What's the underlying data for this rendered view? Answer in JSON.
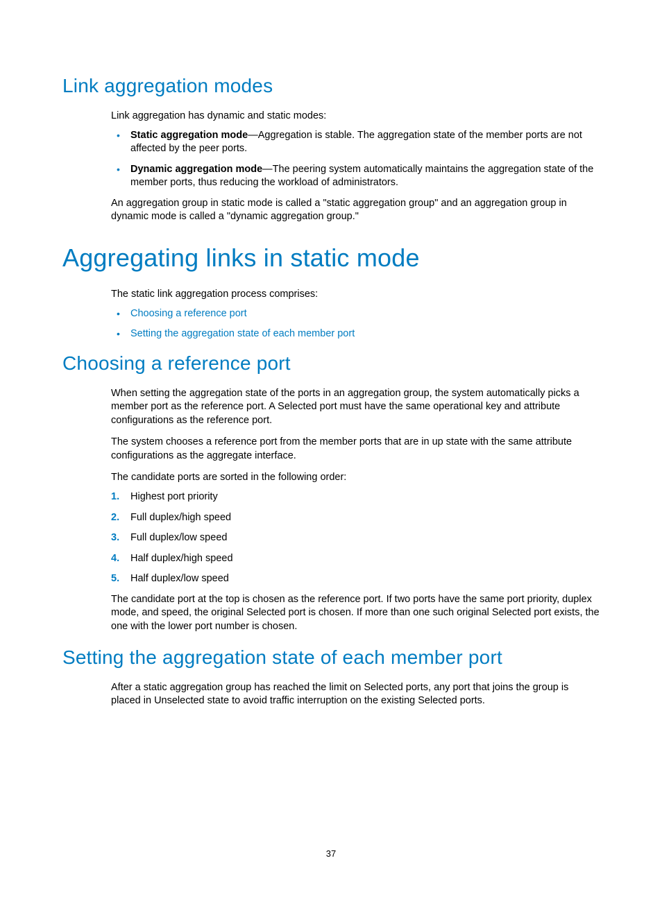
{
  "colors": {
    "heading": "#007cc1",
    "bullet": "#007cc1",
    "number": "#007cc1",
    "link": "#007cc1",
    "text": "#000000",
    "background": "#ffffff"
  },
  "typography": {
    "h1_fontsize": 36,
    "h2_fontsize": 28,
    "body_fontsize": 14.5,
    "pagenum_fontsize": 13
  },
  "page_number": "37",
  "sec1": {
    "heading": "Link aggregation modes",
    "intro": "Link aggregation has dynamic and static modes:",
    "bullets": [
      {
        "term": "Static aggregation mode",
        "desc": "—Aggregation is stable. The aggregation state of the member ports are not affected by the peer ports."
      },
      {
        "term": "Dynamic aggregation mode",
        "desc": "—The peering system automatically maintains the aggregation state of the member ports, thus reducing the workload of administrators."
      }
    ],
    "para2": "An aggregation group in static mode is called a \"static aggregation group\" and an aggregation group in dynamic mode is called a \"dynamic aggregation group.\""
  },
  "sec2": {
    "heading": "Aggregating links in static mode",
    "intro": "The static link aggregation process comprises:",
    "links": [
      "Choosing a reference port",
      "Setting the aggregation state of each member port"
    ]
  },
  "sec3": {
    "heading": "Choosing a reference port",
    "p1": "When setting the aggregation state of the ports in an aggregation group, the system automatically picks a member port as the reference port. A Selected port must have the same operational key and attribute configurations as the reference port.",
    "p2": "The system chooses a reference port from the member ports that are in up state with the same attribute configurations as the aggregate interface.",
    "p3": "The candidate ports are sorted in the following order:",
    "items": [
      "Highest port priority",
      "Full duplex/high speed",
      "Full duplex/low speed",
      "Half duplex/high speed",
      "Half duplex/low speed"
    ],
    "p4": "The candidate port at the top is chosen as the reference port. If two ports have the same port priority, duplex mode, and speed, the original Selected port is chosen. If more than one such original Selected port exists, the one with the lower port number is chosen."
  },
  "sec4": {
    "heading": "Setting the aggregation state of each member port",
    "p1": "After a static aggregation group has reached the limit on Selected ports, any port that joins the group is placed in Unselected state to avoid traffic interruption on the existing Selected ports."
  }
}
